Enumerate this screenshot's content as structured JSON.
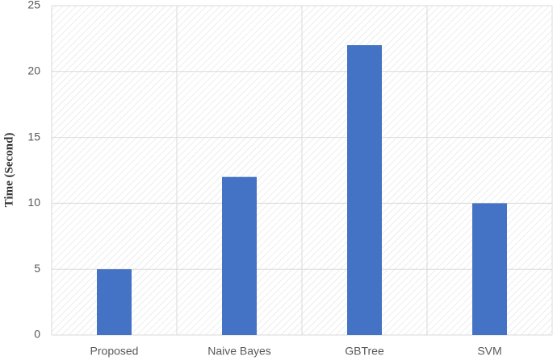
{
  "chart_data": {
    "type": "bar",
    "y_label": "Time (Second)",
    "categories": [
      "Proposed",
      "Naive Bayes",
      "GBTree",
      "SVM"
    ],
    "values": [
      5,
      12,
      22,
      10
    ],
    "color": "#4472c4",
    "ylim": [
      0,
      25
    ],
    "yticks": [
      0,
      5,
      10,
      15,
      20,
      25
    ],
    "grid": true
  }
}
